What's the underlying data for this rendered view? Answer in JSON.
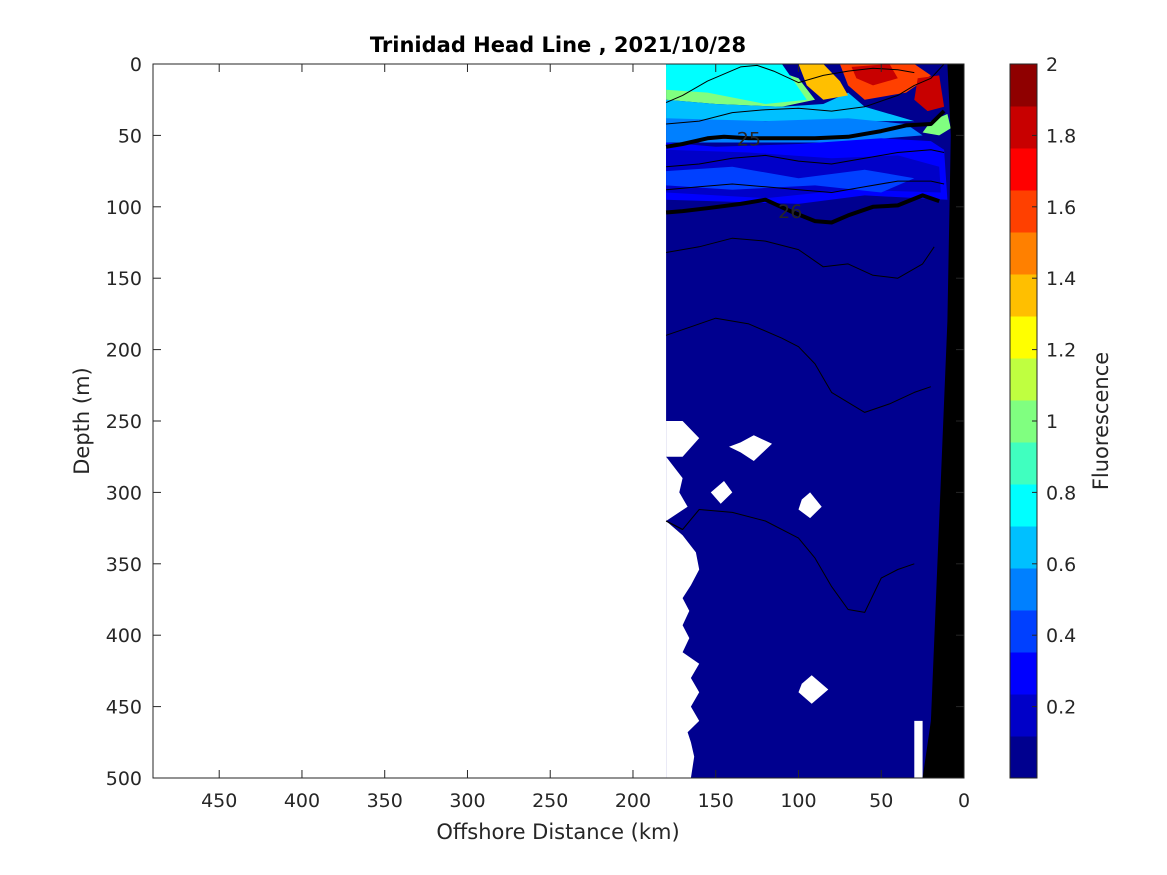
{
  "chart_data": {
    "type": "heatmap",
    "title": "Trinidad Head Line , 2021/10/28",
    "xlabel": "Offshore Distance (km)",
    "ylabel": "Depth (m)",
    "colorbar_label": "Fluorescence",
    "x_reversed": true,
    "y_reversed": true,
    "xlim": [
      0,
      490
    ],
    "ylim": [
      0,
      500
    ],
    "xticks": [
      450,
      400,
      350,
      300,
      250,
      200,
      150,
      100,
      50,
      0
    ],
    "yticks": [
      0,
      50,
      100,
      150,
      200,
      250,
      300,
      350,
      400,
      450,
      500
    ],
    "clim": [
      0,
      2
    ],
    "colorbar_ticks": [
      0.2,
      0.4,
      0.6,
      0.8,
      1,
      1.2,
      1.4,
      1.6,
      1.8,
      2
    ],
    "colormap": [
      "#00008f",
      "#0000c8",
      "#0000ff",
      "#0040ff",
      "#0080ff",
      "#00c0ff",
      "#00ffff",
      "#40ffbf",
      "#80ff80",
      "#bfff40",
      "#ffff00",
      "#ffbf00",
      "#ff8000",
      "#ff4000",
      "#ff0000",
      "#c80000",
      "#8f0000"
    ],
    "data_extent": {
      "x_min": 0,
      "x_max": 180,
      "depth_max": 500
    },
    "fluorescence_regions": [
      {
        "level": 1.0,
        "poly": [
          [
            180,
            2
          ],
          [
            150,
            5
          ],
          [
            125,
            0
          ],
          [
            100,
            10
          ],
          [
            90,
            25
          ],
          [
            110,
            30
          ],
          [
            150,
            28
          ],
          [
            180,
            25
          ]
        ]
      },
      {
        "level": 0.8,
        "poly": [
          [
            180,
            0
          ],
          [
            110,
            0
          ],
          [
            95,
            25
          ],
          [
            120,
            28
          ],
          [
            155,
            20
          ],
          [
            180,
            18
          ]
        ]
      },
      {
        "level": 0.7,
        "poly": [
          [
            180,
            25
          ],
          [
            150,
            28
          ],
          [
            110,
            30
          ],
          [
            85,
            28
          ],
          [
            70,
            20
          ],
          [
            60,
            30
          ],
          [
            30,
            40
          ],
          [
            180,
            40
          ]
        ]
      },
      {
        "level": 0.5,
        "poly": [
          [
            180,
            38
          ],
          [
            120,
            40
          ],
          [
            70,
            38
          ],
          [
            35,
            42
          ],
          [
            25,
            50
          ],
          [
            80,
            55
          ],
          [
            180,
            55
          ]
        ]
      },
      {
        "level": 1.3,
        "poly": [
          [
            100,
            0
          ],
          [
            85,
            0
          ],
          [
            75,
            12
          ],
          [
            70,
            22
          ],
          [
            85,
            25
          ],
          [
            95,
            15
          ]
        ]
      },
      {
        "level": 1.6,
        "poly": [
          [
            75,
            0
          ],
          [
            30,
            0
          ],
          [
            20,
            8
          ],
          [
            35,
            20
          ],
          [
            60,
            25
          ],
          [
            70,
            15
          ]
        ]
      },
      {
        "level": 1.85,
        "poly": [
          [
            68,
            2
          ],
          [
            45,
            0
          ],
          [
            40,
            10
          ],
          [
            55,
            15
          ],
          [
            65,
            10
          ]
        ]
      },
      {
        "level": 1.85,
        "poly": [
          [
            28,
            10
          ],
          [
            15,
            8
          ],
          [
            12,
            30
          ],
          [
            22,
            33
          ],
          [
            30,
            25
          ]
        ]
      },
      {
        "level": 1.0,
        "poly": [
          [
            20,
            40
          ],
          [
            10,
            35
          ],
          [
            8,
            45
          ],
          [
            15,
            50
          ],
          [
            25,
            48
          ]
        ]
      },
      {
        "level": 0.3,
        "poly": [
          [
            180,
            55
          ],
          [
            150,
            58
          ],
          [
            100,
            56
          ],
          [
            50,
            52
          ],
          [
            20,
            54
          ],
          [
            12,
            60
          ],
          [
            10,
            95
          ],
          [
            60,
            92
          ],
          [
            100,
            98
          ],
          [
            180,
            95
          ]
        ]
      },
      {
        "level": 0.2,
        "poly": [
          [
            180,
            60
          ],
          [
            130,
            62
          ],
          [
            80,
            66
          ],
          [
            40,
            64
          ],
          [
            15,
            72
          ],
          [
            14,
            90
          ],
          [
            70,
            88
          ],
          [
            120,
            94
          ],
          [
            180,
            90
          ]
        ]
      },
      {
        "level": 0.4,
        "poly": [
          [
            180,
            75
          ],
          [
            140,
            72
          ],
          [
            100,
            80
          ],
          [
            60,
            74
          ],
          [
            30,
            80
          ],
          [
            50,
            90
          ],
          [
            90,
            85
          ],
          [
            140,
            88
          ],
          [
            180,
            85
          ]
        ]
      }
    ],
    "density_contours": [
      {
        "label": "25",
        "bold": true,
        "points": [
          [
            180,
            58
          ],
          [
            170,
            56
          ],
          [
            155,
            52
          ],
          [
            145,
            51
          ],
          [
            130,
            52
          ],
          [
            110,
            52
          ],
          [
            90,
            52
          ],
          [
            70,
            51
          ],
          [
            50,
            47
          ],
          [
            35,
            43
          ],
          [
            20,
            42
          ],
          [
            12,
            33
          ]
        ]
      },
      {
        "label": "26",
        "bold": true,
        "points": [
          [
            180,
            104
          ],
          [
            170,
            103
          ],
          [
            155,
            101
          ],
          [
            135,
            98
          ],
          [
            120,
            95
          ],
          [
            105,
            103
          ],
          [
            90,
            110
          ],
          [
            80,
            111
          ],
          [
            70,
            106
          ],
          [
            55,
            100
          ],
          [
            40,
            99
          ],
          [
            25,
            92
          ],
          [
            15,
            96
          ]
        ]
      },
      {
        "label": "",
        "bold": false,
        "points": [
          [
            180,
            27
          ],
          [
            170,
            22
          ],
          [
            155,
            12
          ],
          [
            135,
            2
          ],
          [
            125,
            1
          ],
          [
            115,
            5
          ],
          [
            100,
            13
          ],
          [
            85,
            8
          ],
          [
            70,
            5
          ],
          [
            55,
            3
          ],
          [
            40,
            4
          ],
          [
            30,
            6
          ]
        ]
      },
      {
        "label": "",
        "bold": false,
        "points": [
          [
            180,
            42
          ],
          [
            160,
            40
          ],
          [
            140,
            34
          ],
          [
            120,
            32
          ],
          [
            100,
            31
          ],
          [
            80,
            33
          ],
          [
            60,
            30
          ],
          [
            40,
            22
          ],
          [
            30,
            15
          ],
          [
            20,
            10
          ],
          [
            12,
            0
          ]
        ]
      },
      {
        "label": "",
        "bold": false,
        "points": [
          [
            180,
            72
          ],
          [
            160,
            70
          ],
          [
            140,
            66
          ],
          [
            120,
            64
          ],
          [
            100,
            68
          ],
          [
            80,
            70
          ],
          [
            60,
            66
          ],
          [
            40,
            62
          ],
          [
            20,
            60
          ],
          [
            12,
            62
          ]
        ]
      },
      {
        "label": "",
        "bold": false,
        "points": [
          [
            180,
            88
          ],
          [
            160,
            86
          ],
          [
            140,
            84
          ],
          [
            120,
            86
          ],
          [
            100,
            88
          ],
          [
            80,
            90
          ],
          [
            60,
            86
          ],
          [
            40,
            82
          ],
          [
            20,
            82
          ],
          [
            12,
            84
          ]
        ]
      },
      {
        "label": "",
        "bold": false,
        "points": [
          [
            180,
            132
          ],
          [
            160,
            128
          ],
          [
            140,
            122
          ],
          [
            120,
            124
          ],
          [
            100,
            130
          ],
          [
            85,
            142
          ],
          [
            70,
            140
          ],
          [
            55,
            148
          ],
          [
            40,
            150
          ],
          [
            25,
            140
          ],
          [
            18,
            128
          ]
        ]
      },
      {
        "label": "",
        "bold": false,
        "points": [
          [
            180,
            190
          ],
          [
            165,
            184
          ],
          [
            150,
            178
          ],
          [
            130,
            182
          ],
          [
            110,
            192
          ],
          [
            100,
            198
          ],
          [
            90,
            210
          ],
          [
            80,
            230
          ],
          [
            60,
            244
          ],
          [
            45,
            238
          ],
          [
            30,
            230
          ],
          [
            20,
            226
          ]
        ]
      },
      {
        "label": "",
        "bold": false,
        "points": [
          [
            180,
            320
          ],
          [
            170,
            326
          ],
          [
            160,
            312
          ],
          [
            140,
            314
          ],
          [
            120,
            320
          ],
          [
            100,
            332
          ],
          [
            90,
            346
          ],
          [
            80,
            366
          ],
          [
            70,
            382
          ],
          [
            60,
            384
          ],
          [
            50,
            360
          ],
          [
            40,
            354
          ],
          [
            30,
            350
          ]
        ]
      },
      {
        "label": "",
        "bold": false,
        "points": [
          [
            180,
            320
          ],
          [
            170,
            326
          ]
        ]
      }
    ],
    "missing_data_patches": [
      {
        "poly": [
          [
            180,
            250
          ],
          [
            170,
            250
          ],
          [
            160,
            262
          ],
          [
            170,
            275
          ],
          [
            180,
            275
          ]
        ]
      },
      {
        "poly": [
          [
            135,
            265
          ],
          [
            127,
            260
          ],
          [
            116,
            266
          ],
          [
            127,
            278
          ],
          [
            135,
            272
          ],
          [
            142,
            268
          ]
        ]
      },
      {
        "poly": [
          [
            153,
            300
          ],
          [
            145,
            292
          ],
          [
            140,
            300
          ],
          [
            147,
            308
          ]
        ]
      },
      {
        "poly": [
          [
            98,
            305
          ],
          [
            93,
            300
          ],
          [
            86,
            310
          ],
          [
            93,
            318
          ],
          [
            100,
            312
          ]
        ]
      },
      {
        "poly": [
          [
            180,
            275
          ],
          [
            170,
            290
          ],
          [
            172,
            300
          ],
          [
            167,
            310
          ],
          [
            180,
            320
          ]
        ]
      },
      {
        "poly": [
          [
            180,
            320
          ],
          [
            170,
            330
          ],
          [
            162,
            342
          ],
          [
            160,
            354
          ],
          [
            165,
            365
          ],
          [
            170,
            374
          ],
          [
            166,
            383
          ],
          [
            170,
            393
          ],
          [
            166,
            402
          ],
          [
            170,
            412
          ],
          [
            160,
            420
          ],
          [
            165,
            430
          ],
          [
            160,
            440
          ],
          [
            165,
            450
          ],
          [
            160,
            460
          ],
          [
            167,
            468
          ],
          [
            165,
            475
          ],
          [
            163,
            485
          ],
          [
            165,
            500
          ],
          [
            180,
            500
          ]
        ]
      },
      {
        "poly": [
          [
            98,
            434
          ],
          [
            92,
            428
          ],
          [
            82,
            438
          ],
          [
            92,
            448
          ],
          [
            100,
            440
          ]
        ]
      },
      {
        "poly": [
          [
            30,
            460
          ],
          [
            25,
            460
          ],
          [
            25,
            500
          ],
          [
            30,
            500
          ]
        ]
      }
    ],
    "bathymetry": [
      [
        10,
        0
      ],
      [
        0,
        0
      ],
      [
        0,
        500
      ],
      [
        25,
        500
      ],
      [
        20,
        460
      ],
      [
        10,
        180
      ],
      [
        8,
        50
      ]
    ]
  }
}
